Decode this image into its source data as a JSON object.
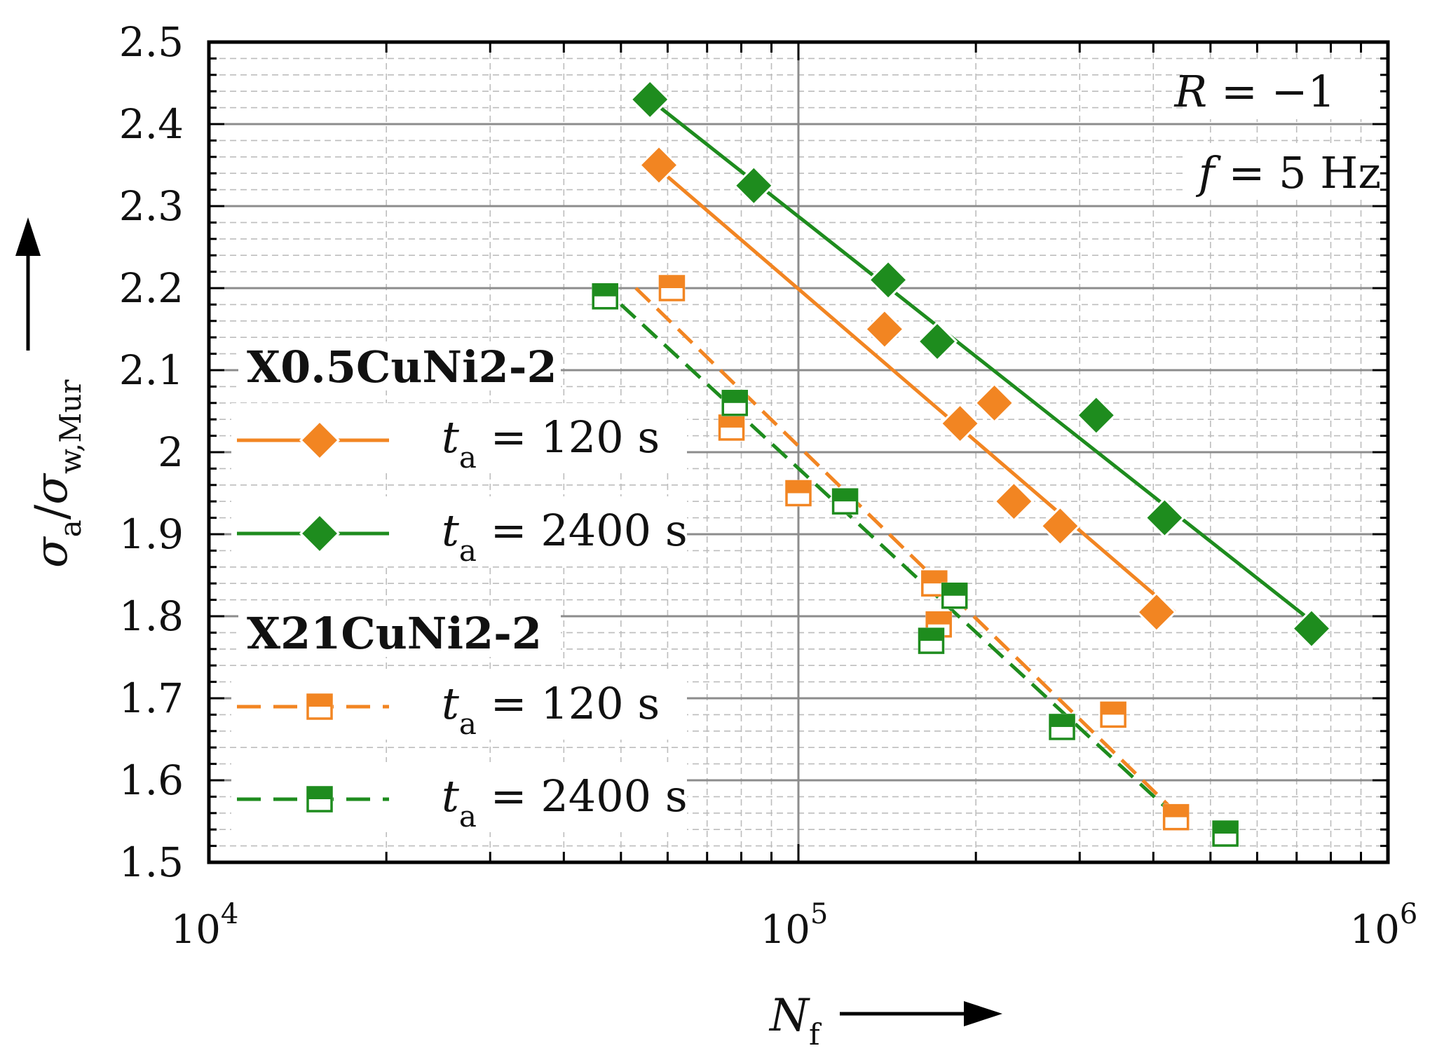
{
  "chart_data": {
    "type": "scatter",
    "title": "",
    "xlabel": "N",
    "xlabel_sub": "f",
    "ylabel": "σ",
    "ylabel_sub": "a",
    "ylabel_den": "σ",
    "ylabel_den_sub": "w,Mur",
    "xscale": "log",
    "xlim": [
      10000,
      1000000
    ],
    "ylim": [
      1.5,
      2.5
    ],
    "yticks": [
      "1.5",
      "1.6",
      "1.7",
      "1.8",
      "1.9",
      "2",
      "2.1",
      "2.2",
      "2.3",
      "2.4",
      "2.5"
    ],
    "xticks": [
      {
        "base": "10",
        "exp": "4",
        "value": 10000
      },
      {
        "base": "10",
        "exp": "5",
        "value": 100000
      },
      {
        "base": "10",
        "exp": "6",
        "value": 1000000
      }
    ],
    "grid": true,
    "annotations": {
      "r_var": "R",
      "r_rest": " = −1",
      "f_var": "f",
      "f_rest": " = 5 Hz"
    },
    "legend_groups": [
      {
        "name": "X0.5CuNi2-2",
        "entries": [
          {
            "var": "t",
            "sub": "a",
            "rest": " = 120 s",
            "series": 0
          },
          {
            "var": "t",
            "sub": "a",
            "rest": " = 2400 s",
            "series": 1
          }
        ]
      },
      {
        "name": "X21CuNi2-2",
        "entries": [
          {
            "var": "t",
            "sub": "a",
            "rest": " = 120 s",
            "series": 2
          },
          {
            "var": "t",
            "sub": "a",
            "rest": " = 2400 s",
            "series": 3
          }
        ]
      }
    ],
    "series": [
      {
        "name": "X0.5CuNi2-2, ta = 120 s",
        "color": "#F28522",
        "marker": "diamond",
        "line": "solid",
        "x": [
          58000,
          140000,
          188000,
          215000,
          232000,
          278000,
          405000
        ],
        "y": [
          2.35,
          2.15,
          2.035,
          2.06,
          1.94,
          1.91,
          1.805
        ],
        "fit": {
          "x": [
            58000,
            435000
          ],
          "y": [
            2.345,
            1.805
          ]
        }
      },
      {
        "name": "X0.5CuNi2-2, ta = 2400 s",
        "color": "#1E8C1E",
        "marker": "diamond",
        "line": "solid",
        "x": [
          56000,
          84000,
          142000,
          172000,
          320000,
          418000,
          742000
        ],
        "y": [
          2.43,
          2.325,
          2.21,
          2.135,
          2.045,
          1.92,
          1.785
        ],
        "fit": {
          "x": [
            56000,
            770000
          ],
          "y": [
            2.43,
            1.785
          ]
        }
      },
      {
        "name": "X21CuNi2-2, ta = 120 s",
        "color": "#F28522",
        "marker": "square",
        "line": "dashed",
        "x": [
          61000,
          77000,
          100000,
          170000,
          173000,
          342000,
          437000
        ],
        "y": [
          2.2,
          2.03,
          1.95,
          1.84,
          1.79,
          1.68,
          1.555
        ],
        "fit": {
          "x": [
            53000,
            445000
          ],
          "y": [
            2.2,
            1.555
          ]
        }
      },
      {
        "name": "X21CuNi2-2, ta = 2400 s",
        "color": "#1E8C1E",
        "marker": "square",
        "line": "dashed",
        "x": [
          47000,
          78000,
          120000,
          168000,
          184000,
          280000,
          530000
        ],
        "y": [
          2.19,
          2.06,
          1.94,
          1.77,
          1.825,
          1.665,
          1.535
        ],
        "fit": {
          "x": [
            50000,
            430000
          ],
          "y": [
            2.18,
            1.56
          ]
        }
      }
    ]
  }
}
